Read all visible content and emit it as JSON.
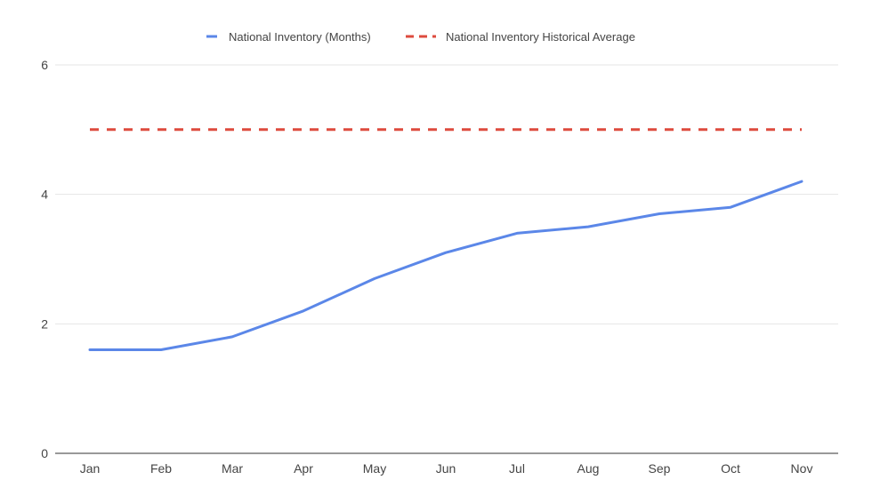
{
  "chart_data": {
    "type": "line",
    "title": "",
    "xlabel": "",
    "ylabel": "",
    "categories": [
      "Jan",
      "Feb",
      "Mar",
      "Apr",
      "May",
      "Jun",
      "Jul",
      "Aug",
      "Sep",
      "Oct",
      "Nov"
    ],
    "series": [
      {
        "name": "National Inventory (Months)",
        "values": [
          1.6,
          1.6,
          1.8,
          2.2,
          2.7,
          3.1,
          3.4,
          3.5,
          3.7,
          3.8,
          4.2
        ],
        "color": "#5b87e8",
        "style": "solid"
      },
      {
        "name": "National Inventory Historical Average",
        "values": [
          5,
          5,
          5,
          5,
          5,
          5,
          5,
          5,
          5,
          5,
          5
        ],
        "color": "#dd4b3e",
        "style": "dashed"
      }
    ],
    "ylim": [
      0,
      6
    ],
    "yticks": [
      "0",
      "2",
      "4",
      "6"
    ],
    "grid": true,
    "legend_position": "top-center"
  }
}
